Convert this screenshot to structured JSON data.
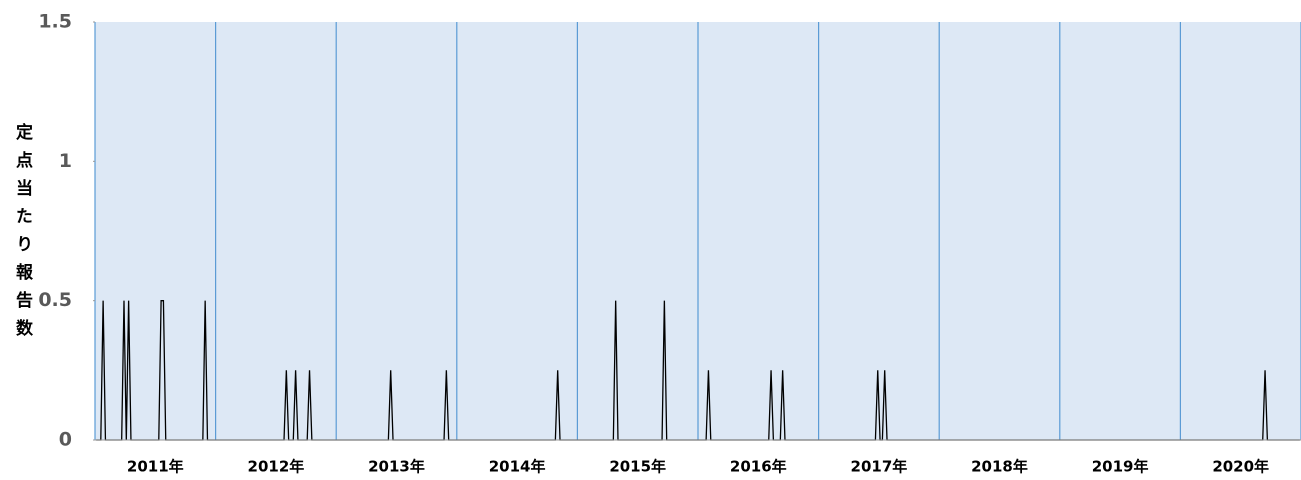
{
  "chart_data": {
    "type": "line",
    "y_label": "定点当たり報告数",
    "categories": [
      "2011年",
      "2012年",
      "2013年",
      "2014年",
      "2015年",
      "2016年",
      "2017年",
      "2018年",
      "2019年",
      "2020年"
    ],
    "values": [
      [
        0,
        0,
        0,
        0.5,
        0,
        0,
        0,
        0,
        0,
        0,
        0,
        0,
        0.5,
        0,
        0.5,
        0,
        0,
        0,
        0,
        0,
        0,
        0,
        0,
        0,
        0,
        0,
        0,
        0,
        0.5,
        0.5,
        0,
        0,
        0,
        0,
        0,
        0,
        0,
        0,
        0,
        0,
        0,
        0,
        0,
        0,
        0,
        0,
        0,
        0.5,
        0,
        0,
        0,
        0
      ],
      [
        0,
        0,
        0,
        0,
        0,
        0,
        0,
        0,
        0,
        0,
        0,
        0,
        0,
        0,
        0,
        0,
        0,
        0,
        0,
        0,
        0,
        0,
        0,
        0,
        0,
        0,
        0,
        0,
        0,
        0,
        0.25,
        0,
        0,
        0,
        0.25,
        0,
        0,
        0,
        0,
        0,
        0.25,
        0,
        0,
        0,
        0,
        0,
        0,
        0,
        0,
        0,
        0,
        0
      ],
      [
        0,
        0,
        0,
        0,
        0,
        0,
        0,
        0,
        0,
        0,
        0,
        0,
        0,
        0,
        0,
        0,
        0,
        0,
        0,
        0,
        0,
        0,
        0,
        0.25,
        0,
        0,
        0,
        0,
        0,
        0,
        0,
        0,
        0,
        0,
        0,
        0,
        0,
        0,
        0,
        0,
        0,
        0,
        0,
        0,
        0,
        0,
        0,
        0.25,
        0,
        0,
        0,
        0
      ],
      [
        0,
        0,
        0,
        0,
        0,
        0,
        0,
        0,
        0,
        0,
        0,
        0,
        0,
        0,
        0,
        0,
        0,
        0,
        0,
        0,
        0,
        0,
        0,
        0,
        0,
        0,
        0,
        0,
        0,
        0,
        0,
        0,
        0,
        0,
        0,
        0,
        0,
        0,
        0,
        0,
        0,
        0,
        0,
        0.25,
        0,
        0,
        0,
        0,
        0,
        0,
        0,
        0
      ],
      [
        0,
        0,
        0,
        0,
        0,
        0,
        0,
        0,
        0,
        0,
        0,
        0,
        0,
        0,
        0,
        0,
        0.5,
        0,
        0,
        0,
        0,
        0,
        0,
        0,
        0,
        0,
        0,
        0,
        0,
        0,
        0,
        0,
        0,
        0,
        0,
        0,
        0,
        0.5,
        0,
        0,
        0,
        0,
        0,
        0,
        0,
        0,
        0,
        0,
        0,
        0,
        0,
        0
      ],
      [
        0,
        0,
        0,
        0,
        0.25,
        0,
        0,
        0,
        0,
        0,
        0,
        0,
        0,
        0,
        0,
        0,
        0,
        0,
        0,
        0,
        0,
        0,
        0,
        0,
        0,
        0,
        0,
        0,
        0,
        0,
        0,
        0.25,
        0,
        0,
        0,
        0,
        0.25,
        0,
        0,
        0,
        0,
        0,
        0,
        0,
        0,
        0,
        0,
        0,
        0,
        0,
        0,
        0
      ],
      [
        0,
        0,
        0,
        0,
        0,
        0,
        0,
        0,
        0,
        0,
        0,
        0,
        0,
        0,
        0,
        0,
        0,
        0,
        0,
        0,
        0,
        0,
        0,
        0,
        0,
        0.25,
        0,
        0,
        0.25,
        0,
        0,
        0,
        0,
        0,
        0,
        0,
        0,
        0,
        0,
        0,
        0,
        0,
        0,
        0,
        0,
        0,
        0,
        0,
        0,
        0,
        0,
        0
      ],
      [
        0,
        0,
        0,
        0,
        0,
        0,
        0,
        0,
        0,
        0,
        0,
        0,
        0,
        0,
        0,
        0,
        0,
        0,
        0,
        0,
        0,
        0,
        0,
        0,
        0,
        0,
        0,
        0,
        0,
        0,
        0,
        0,
        0,
        0,
        0,
        0,
        0,
        0,
        0,
        0,
        0,
        0,
        0,
        0,
        0,
        0,
        0,
        0,
        0,
        0,
        0,
        0
      ],
      [
        0,
        0,
        0,
        0,
        0,
        0,
        0,
        0,
        0,
        0,
        0,
        0,
        0,
        0,
        0,
        0,
        0,
        0,
        0,
        0,
        0,
        0,
        0,
        0,
        0,
        0,
        0,
        0,
        0,
        0,
        0,
        0,
        0,
        0,
        0,
        0,
        0,
        0,
        0,
        0,
        0,
        0,
        0,
        0,
        0,
        0,
        0,
        0,
        0,
        0,
        0,
        0
      ],
      [
        0,
        0,
        0,
        0,
        0,
        0,
        0,
        0,
        0,
        0,
        0,
        0,
        0,
        0,
        0,
        0,
        0,
        0,
        0,
        0,
        0,
        0,
        0,
        0,
        0,
        0,
        0,
        0,
        0,
        0,
        0,
        0,
        0,
        0,
        0,
        0,
        0.25,
        0,
        0,
        0,
        0,
        0,
        0,
        0,
        0,
        0,
        0,
        0,
        0,
        0,
        0,
        0
      ]
    ],
    "color": "#000000",
    "band_color": "#dde8f5",
    "divider_color": "#5b9bd5",
    "ylim": [
      0,
      1.5
    ],
    "yticks": [
      0,
      0.5,
      1,
      1.5
    ]
  }
}
